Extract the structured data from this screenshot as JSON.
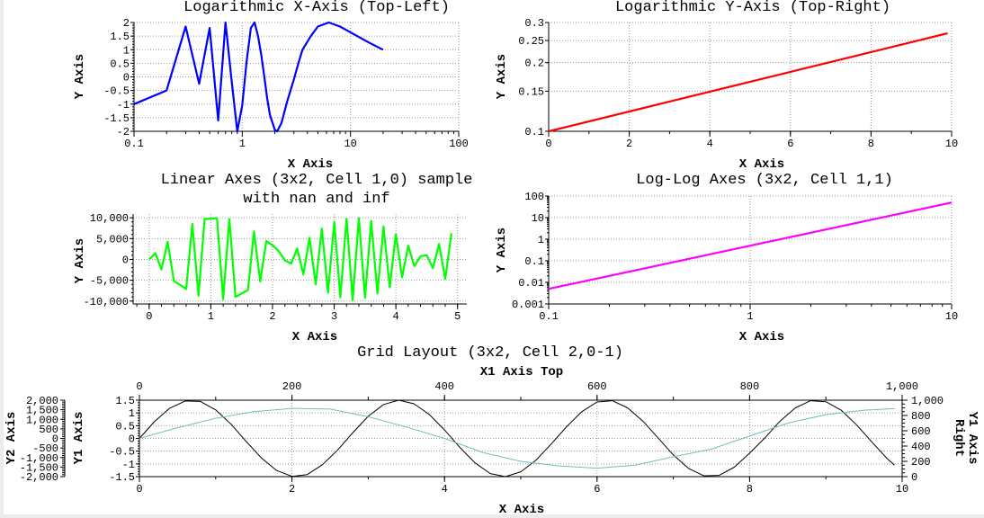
{
  "chart_data": [
    {
      "type": "line",
      "title": "Logarithmic X-Axis (Top-Left)",
      "xlabel": "X Axis",
      "ylabel": "Y Axis",
      "xscale": "log",
      "yscale": "linear",
      "xlim": [
        0.1,
        100
      ],
      "ylim": [
        -2,
        2
      ],
      "grid": true,
      "xticks": [
        0.1,
        1,
        10,
        100
      ],
      "xticklabels": [
        "0.1",
        "1",
        "10",
        "100"
      ],
      "yticks": [
        -2,
        -1.5,
        -1,
        -0.5,
        0,
        0.5,
        1,
        1.5,
        2
      ],
      "yticklabels": [
        "-2",
        "-1.5",
        "-1",
        "-0.5",
        "0",
        "0.5",
        "1",
        "1.5",
        "2"
      ],
      "series": [
        {
          "color": "#0000ff",
          "x": [
            0.1,
            0.2,
            0.3,
            0.4,
            0.5,
            0.6,
            0.7,
            0.8,
            0.9,
            1.0,
            1.1,
            1.2,
            1.3,
            1.4,
            1.5,
            1.6,
            1.7,
            1.8,
            2.0,
            2.1,
            2.3,
            2.6,
            3.0,
            3.3,
            3.6,
            4.3,
            5.0,
            6.3,
            8.0,
            11.5,
            15,
            20
          ],
          "y": [
            -1,
            -0.5,
            1.85,
            -0.25,
            1.8,
            -1.6,
            2.0,
            -0.2,
            -2.0,
            -1.05,
            0.6,
            1.8,
            2.0,
            1.5,
            0.8,
            0,
            -0.8,
            -1.4,
            -1.95,
            -2.0,
            -1.7,
            -0.9,
            -0.1,
            0.5,
            1.0,
            1.5,
            1.85,
            2.0,
            1.85,
            1.5,
            1.25,
            1.0
          ]
        }
      ]
    },
    {
      "type": "line",
      "title": "Logarithmic Y-Axis (Top-Right)",
      "xlabel": "X Axis",
      "ylabel": "Y Axis",
      "xscale": "linear",
      "yscale": "log",
      "xlim": [
        0,
        10
      ],
      "ylim": [
        0.1,
        0.3
      ],
      "grid": true,
      "xticks": [
        0,
        2,
        4,
        6,
        8,
        10
      ],
      "xticklabels": [
        "0",
        "2",
        "4",
        "6",
        "8",
        "10"
      ],
      "yticks": [
        0.1,
        0.15,
        0.2,
        0.25,
        0.3
      ],
      "yticklabels": [
        "0.1",
        "0.15",
        "0.2",
        "0.25",
        "0.3"
      ],
      "series": [
        {
          "color": "#ff0000",
          "x": [
            0,
            1,
            2,
            3,
            4,
            5,
            6,
            7,
            8,
            9,
            9.9
          ],
          "y": [
            0.1,
            0.1105,
            0.1221,
            0.135,
            0.1492,
            0.1649,
            0.1822,
            0.2014,
            0.2226,
            0.246,
            0.269
          ]
        }
      ]
    },
    {
      "type": "line",
      "title": "Linear Axes (3x2, Cell 1,0) sample",
      "title_line2": "with nan and inf",
      "xlabel": "X Axis",
      "ylabel": "Y Axis",
      "xscale": "linear",
      "yscale": "linear",
      "xlim": [
        -0.26,
        5.15
      ],
      "ylim": [
        -10700,
        10900
      ],
      "grid": true,
      "xticks": [
        0,
        1,
        2,
        3,
        4,
        5
      ],
      "xticklabels": [
        "0",
        "1",
        "2",
        "3",
        "4",
        "5"
      ],
      "yticks": [
        -10000,
        -5000,
        0,
        5000,
        10000
      ],
      "yticklabels": [
        "-10,000",
        "-5,000",
        "0",
        "5,000",
        "10,000"
      ],
      "series": [
        {
          "color": "#00ff00",
          "x": [
            0,
            0.1,
            0.2,
            0.3,
            0.4,
            0.5,
            0.6,
            0.7,
            0.8,
            0.9,
            1.0,
            1.1,
            1.2,
            1.3,
            1.4,
            1.5,
            1.6,
            1.7,
            1.8,
            1.9,
            2.0,
            2.1,
            2.2,
            2.3,
            2.4,
            2.5,
            2.6,
            2.7,
            2.8,
            2.9,
            3.0,
            3.1,
            3.2,
            3.3,
            3.4,
            3.5,
            3.6,
            3.7,
            3.8,
            3.9,
            4.0,
            4.1,
            4.2,
            4.3,
            4.4,
            4.5,
            4.6,
            4.7,
            4.8,
            4.9
          ],
          "y": [
            0,
            1500,
            -2400,
            4200,
            -5200,
            -6100,
            -7100,
            8500,
            -8700,
            9700,
            9800,
            9900,
            -9600,
            9700,
            -9000,
            -8200,
            -7400,
            6700,
            -5300,
            4400,
            3400,
            2000,
            -200,
            -1000,
            2600,
            -3600,
            5200,
            -6000,
            7400,
            -8000,
            9000,
            -9100,
            9800,
            -9800,
            9900,
            -9200,
            9200,
            -8200,
            7900,
            -6700,
            6100,
            -4300,
            3300,
            -1600,
            800,
            1000,
            -2100,
            3700,
            -4700,
            6300
          ]
        }
      ]
    },
    {
      "type": "line",
      "title": "Log-Log Axes (3x2, Cell 1,1)",
      "xlabel": "X Axis",
      "ylabel": "Y Axis",
      "xscale": "log",
      "yscale": "log",
      "xlim": [
        0.1,
        10
      ],
      "ylim": [
        0.001,
        100
      ],
      "grid": true,
      "xticks": [
        0.1,
        1,
        10
      ],
      "xticklabels": [
        "0.1",
        "1",
        "10"
      ],
      "yticks": [
        0.001,
        0.01,
        0.1,
        1,
        10,
        100
      ],
      "yticklabels": [
        "0.001",
        "0.01",
        "0.1",
        "1",
        "10",
        "100"
      ],
      "series": [
        {
          "color": "#ff00ff",
          "x": [
            0.1,
            0.2,
            0.5,
            1,
            2,
            5,
            10
          ],
          "y": [
            0.005,
            0.02,
            0.125,
            0.5,
            2,
            12.5,
            50
          ]
        }
      ]
    },
    {
      "type": "line",
      "title": "Grid Layout (3x2, Cell 2,0-1)",
      "xlabel": "X Axis",
      "ylabel": "Y1 Axis",
      "x2label": "X1 Axis Top",
      "y2label": "Y2 Axis",
      "yrightlabel": [
        "Y1 Axis",
        "Right"
      ],
      "xscale": "linear",
      "yscale": "linear",
      "xlim": [
        0,
        10
      ],
      "ylim": [
        -1.5,
        1.5
      ],
      "x2lim": [
        0,
        1000
      ],
      "yrightlim": [
        0,
        1000
      ],
      "y2lim": [
        -2000,
        2000
      ],
      "grid": true,
      "xticks": [
        0,
        2,
        4,
        6,
        8,
        10
      ],
      "xticklabels": [
        "0",
        "2",
        "4",
        "6",
        "8",
        "10"
      ],
      "yticks": [
        -1.5,
        -1,
        -0.5,
        0,
        0.5,
        1,
        1.5
      ],
      "yticklabels": [
        "-1.5",
        "-1",
        "-0.5",
        "0",
        "0.5",
        "1",
        "1.5"
      ],
      "x2ticks": [
        0,
        200,
        400,
        600,
        800,
        1000
      ],
      "x2ticklabels": [
        "0",
        "200",
        "400",
        "600",
        "800",
        "1,000"
      ],
      "yrightticks": [
        0,
        200,
        400,
        600,
        800,
        1000
      ],
      "yrightticklabels": [
        "0",
        "200",
        "400",
        "600",
        "800",
        "1,000"
      ],
      "y2ticks": [
        -2000,
        -1500,
        -1000,
        -500,
        0,
        500,
        1000,
        1500,
        2000
      ],
      "y2ticklabels": [
        "-2,000",
        "-1,500",
        "-1,000",
        "-500",
        "0",
        "500",
        "1,000",
        "1,500",
        "2,000"
      ],
      "series": [
        {
          "color": "#000000",
          "yaxis": "left",
          "x": [
            0,
            0.2,
            0.4,
            0.6,
            0.8,
            1.0,
            1.2,
            1.4,
            1.6,
            1.8,
            2.0,
            2.2,
            2.4,
            2.6,
            2.8,
            3.0,
            3.2,
            3.4,
            3.6,
            3.8,
            4.0,
            4.2,
            4.4,
            4.6,
            4.8,
            5.0,
            5.2,
            5.4,
            5.6,
            5.8,
            6.0,
            6.2,
            6.4,
            6.6,
            6.8,
            7.0,
            7.2,
            7.4,
            7.6,
            7.8,
            8.0,
            8.2,
            8.4,
            8.6,
            8.8,
            9.0,
            9.2,
            9.4,
            9.6,
            9.8,
            9.9
          ],
          "y": [
            0,
            0.67,
            1.19,
            1.47,
            1.45,
            1.12,
            0.56,
            -0.12,
            -0.77,
            -1.26,
            -1.49,
            -1.42,
            -1.03,
            -0.45,
            0.23,
            0.87,
            1.33,
            1.5,
            1.36,
            0.94,
            0.33,
            -0.35,
            -0.96,
            -1.38,
            -1.5,
            -1.31,
            -0.85,
            -0.22,
            0.46,
            1.05,
            1.43,
            1.48,
            1.2,
            0.68,
            0.02,
            -0.65,
            -1.18,
            -1.47,
            -1.45,
            -1.13,
            -0.58,
            0.02,
            0.68,
            1.2,
            1.48,
            1.44,
            1.11,
            0.54,
            -0.13,
            -0.78,
            -1.05
          ]
        },
        {
          "color": "#6fbfbf",
          "yaxis": "right",
          "x": [
            0,
            0.5,
            1,
            1.5,
            2,
            2.5,
            3,
            3.5,
            4,
            4.5,
            5,
            5.5,
            6,
            6.5,
            7,
            7.5,
            8,
            8.5,
            9,
            9.5,
            9.9
          ],
          "y": [
            500,
            640,
            763,
            850,
            893,
            883,
            783,
            650,
            500,
            317,
            200,
            140,
            110,
            150,
            260,
            360,
            530,
            700,
            810,
            870,
            890
          ]
        }
      ]
    }
  ]
}
